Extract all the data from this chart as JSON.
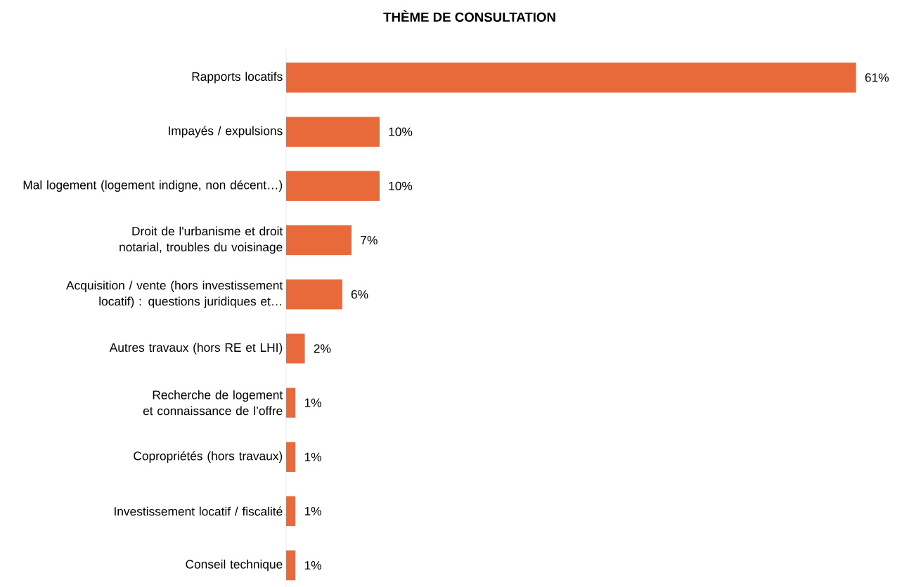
{
  "chart_data": {
    "type": "bar",
    "orientation": "horizontal",
    "title": "THÈME DE CONSULTATION",
    "categories": [
      "Rapports locatifs",
      "Impayés / expulsions",
      "Mal logement (logement indigne, non décent…)",
      "Droit de l'urbanisme et droit notarial, troubles du voisinage",
      "Acquisition / vente (hors investissement locatif) : questions juridiques et…",
      "Autres travaux (hors RE et LHI)",
      "Recherche de logement et connaissance de l’offre",
      "Copropriétés (hors travaux)",
      "Investissement locatif / fiscalité",
      "Conseil technique"
    ],
    "values": [
      61,
      10,
      10,
      7,
      6,
      2,
      1,
      1,
      1,
      1
    ],
    "value_labels": [
      "61%",
      "10%",
      "10%",
      "7%",
      "6%",
      "2%",
      "1%",
      "1%",
      "1%",
      "1%"
    ],
    "color": "#e8693a"
  }
}
